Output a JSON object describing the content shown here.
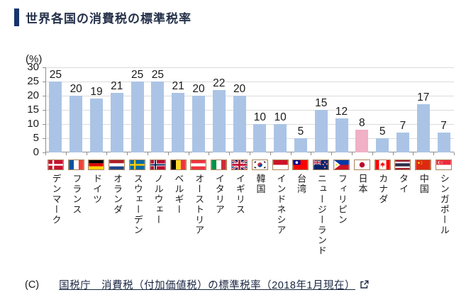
{
  "page": {
    "title": "世界各国の消費税の標準税率"
  },
  "chart_data": {
    "type": "bar",
    "title": "世界各国の消費税の標準税率",
    "unit_label": "(%)",
    "ylim": [
      0,
      30
    ],
    "yticks": [
      30,
      25,
      20,
      15,
      10,
      5,
      0
    ],
    "grid": true,
    "bar_color": "#abc4e6",
    "highlight_color": "#f0b0c6",
    "highlight_index": 15,
    "categories": [
      "デンマーク",
      "フランス",
      "ドイツ",
      "オランダ",
      "スウェーデン",
      "ノルウェー",
      "ベルギー",
      "オーストリア",
      "イタリア",
      "イギリス",
      "韓国",
      "インドネシア",
      "台湾",
      "ニュージーランド",
      "フィリピン",
      "日本",
      "カナダ",
      "タイ",
      "中国",
      "シンガポール"
    ],
    "values": [
      25,
      20,
      19,
      21,
      25,
      25,
      21,
      20,
      22,
      20,
      10,
      10,
      5,
      15,
      12,
      8,
      5,
      7,
      17,
      7
    ],
    "flags": [
      "denmark",
      "france",
      "germany",
      "netherlands",
      "sweden",
      "norway",
      "belgium",
      "austria",
      "italy",
      "uk",
      "south-korea",
      "indonesia",
      "taiwan",
      "new-zealand",
      "philippines",
      "japan",
      "canada",
      "thailand",
      "china",
      "singapore"
    ]
  },
  "footer": {
    "copyright": "(C)",
    "link_label": "国税庁　消費税（付加価値税）の標準税率（2018年1月現在）"
  }
}
